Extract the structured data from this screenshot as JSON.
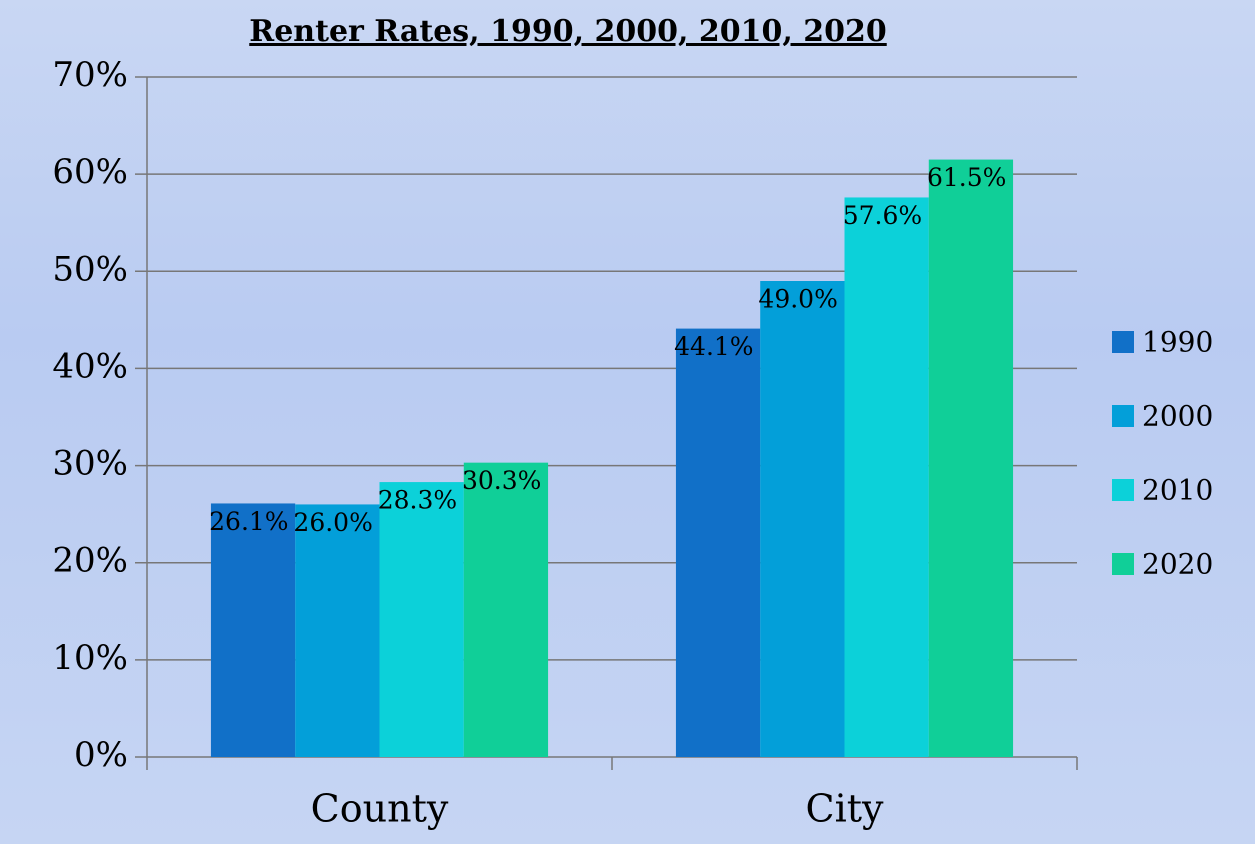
{
  "chart_data": {
    "type": "bar",
    "title": "Renter Rates, 1990, 2000, 2010, 2020",
    "categories": [
      "County",
      "City"
    ],
    "series": [
      {
        "name": "1990",
        "color": "#1170c8",
        "values": [
          26.1,
          44.1
        ],
        "value_labels": [
          "26.1%",
          "44.1%"
        ]
      },
      {
        "name": "2000",
        "color": "#039fd9",
        "values": [
          26.0,
          49.0
        ],
        "value_labels": [
          "26.0%",
          "49.0%"
        ]
      },
      {
        "name": "2010",
        "color": "#0cd1d9",
        "values": [
          28.3,
          57.6
        ],
        "value_labels": [
          "28.3%",
          "57.6%"
        ]
      },
      {
        "name": "2020",
        "color": "#10cf98",
        "values": [
          30.3,
          61.5
        ],
        "value_labels": [
          "30.3%",
          "61.5%"
        ]
      }
    ],
    "ylim": [
      0,
      70
    ],
    "yticks": [
      {
        "value": 0,
        "label": "0%"
      },
      {
        "value": 10,
        "label": "10%"
      },
      {
        "value": 20,
        "label": "20%"
      },
      {
        "value": 30,
        "label": "30%"
      },
      {
        "value": 40,
        "label": "40%"
      },
      {
        "value": 50,
        "label": "50%"
      },
      {
        "value": 60,
        "label": "60%"
      },
      {
        "value": 70,
        "label": "70%"
      }
    ],
    "grid": true,
    "legend": "right"
  }
}
